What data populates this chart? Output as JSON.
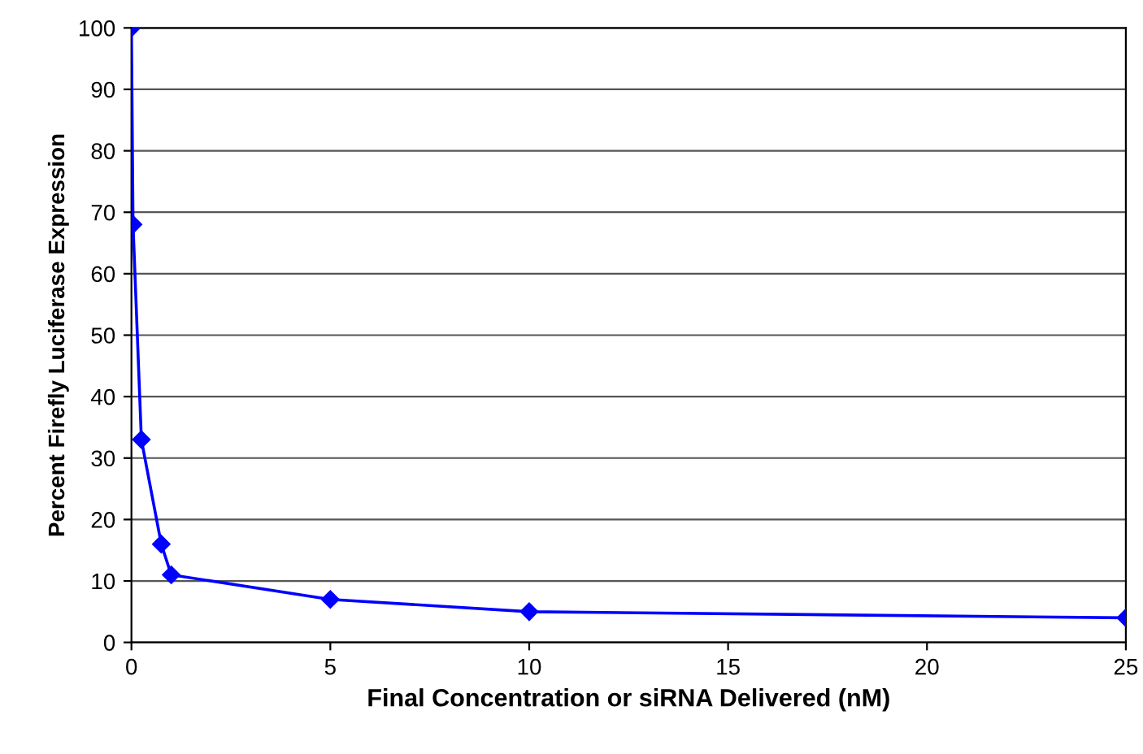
{
  "chart_data": {
    "type": "line",
    "xlabel": "Final Concentration or siRNA Delivered (nM)",
    "ylabel": "Percent Firefly Luciferase Expression",
    "series": [
      {
        "color": "#0000ff",
        "x": [
          0,
          0.04,
          0.25,
          0.75,
          1,
          5,
          10,
          25
        ],
        "values": [
          100,
          68,
          33,
          16,
          11,
          7,
          5,
          4
        ]
      }
    ],
    "xlim": [
      0,
      25
    ],
    "xticks": [
      0,
      5,
      10,
      15,
      20,
      25
    ],
    "ylim": [
      0,
      100
    ],
    "yticks": [
      0,
      10,
      20,
      30,
      40,
      50,
      60,
      70,
      80,
      90,
      100
    ],
    "grid": "y",
    "marker": "diamond",
    "line_style": "solid",
    "legend": false
  }
}
